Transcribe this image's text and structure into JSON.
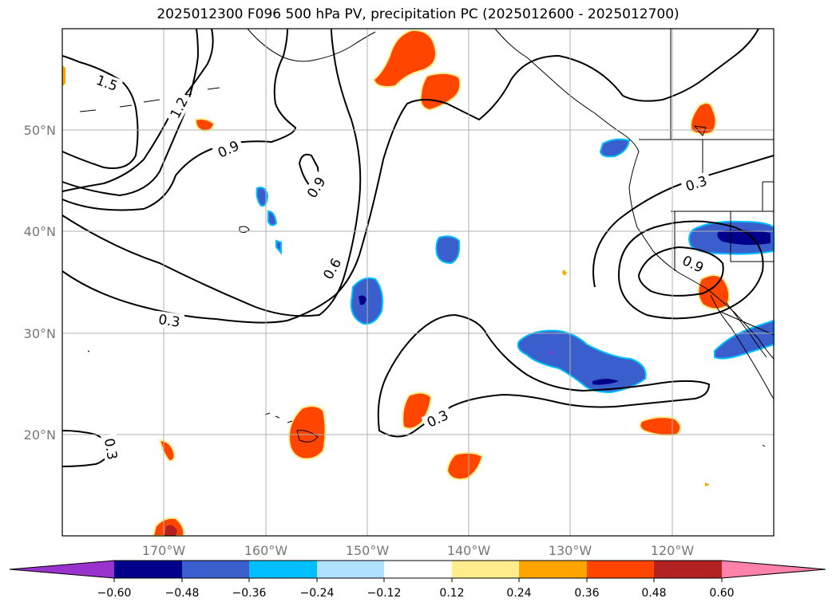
{
  "title": "2025012300 F096 500 hPa PV, precipitation PC (2025012600 - 2025012700)",
  "map": {
    "lon_range": [
      -180,
      -110
    ],
    "lat_range": [
      10,
      60
    ],
    "lat_labels": [
      "50°N",
      "40°N",
      "30°N",
      "20°N"
    ],
    "lon_labels": [
      "170°W",
      "160°W",
      "150°W",
      "140°W",
      "130°W",
      "120°W"
    ],
    "contour_labels": [
      "1.5",
      "1.2",
      "0.9",
      "0.9",
      "0.6",
      "0.3",
      "0.3",
      "0.3",
      "0.3",
      "0.9"
    ],
    "colors": {
      "coastline": "#000000",
      "grid": "#b0b0b0"
    }
  },
  "colorbar": {
    "colors": [
      "#9a32cd",
      "#00008b",
      "#3a5fcd",
      "#00bfff",
      "#b0e2ff",
      "#ffffff",
      "#ffec8b",
      "#ffa500",
      "#ff4500",
      "#b22222",
      "#ff82ab"
    ],
    "tick_labels": [
      "−0.60",
      "−0.48",
      "−0.36",
      "−0.24",
      "−0.12",
      "0.12",
      "0.24",
      "0.36",
      "0.48",
      "0.60"
    ]
  },
  "chart_data": {
    "type": "heatmap",
    "title": "2025012300 F096 500 hPa PV, precipitation PC (2025012600 - 2025012700)",
    "xlim": [
      -180,
      -110
    ],
    "ylim": [
      10,
      60
    ],
    "contour_levels": [
      0.3,
      0.6,
      0.9,
      1.2,
      1.5
    ],
    "colorbar_levels": [
      -0.6,
      -0.48,
      -0.36,
      -0.24,
      -0.12,
      0.12,
      0.24,
      0.36,
      0.48,
      0.6
    ]
  }
}
